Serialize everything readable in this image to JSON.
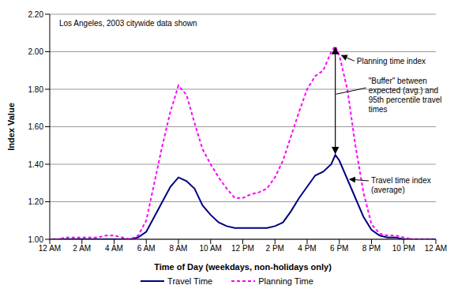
{
  "chart_data": {
    "type": "line",
    "title": "Los Angeles, 2003 citywide data shown",
    "x_label": "Time of Day (weekdays, non-holidays only)",
    "y_label": "Index Value",
    "x": [
      0,
      0.5,
      1,
      1.5,
      2,
      2.5,
      3,
      3.5,
      4,
      4.5,
      5,
      5.5,
      6,
      6.5,
      7,
      7.5,
      8,
      8.5,
      9,
      9.5,
      10,
      10.5,
      11,
      11.5,
      12,
      12.5,
      13,
      13.5,
      14,
      14.5,
      15,
      15.5,
      16,
      16.5,
      17,
      17.5,
      17.75,
      18,
      18.5,
      19,
      19.5,
      20,
      20.5,
      21,
      21.5,
      22,
      22.5,
      23,
      23.5,
      24
    ],
    "series": [
      {
        "name": "Travel Time",
        "color": "#000080",
        "line_style": "solid",
        "values": [
          1.0,
          1.0,
          1.0,
          1.0,
          1.0,
          1.0,
          1.0,
          1.0,
          1.0,
          1.0,
          1.0,
          1.01,
          1.04,
          1.12,
          1.2,
          1.28,
          1.33,
          1.31,
          1.27,
          1.18,
          1.13,
          1.09,
          1.07,
          1.06,
          1.06,
          1.06,
          1.06,
          1.06,
          1.07,
          1.09,
          1.15,
          1.22,
          1.28,
          1.34,
          1.36,
          1.4,
          1.45,
          1.42,
          1.32,
          1.22,
          1.12,
          1.05,
          1.02,
          1.01,
          1.01,
          1.0,
          1.0,
          1.0,
          1.0,
          1.0
        ]
      },
      {
        "name": "Planning Time",
        "color": "#ff00ff",
        "line_style": "dashed",
        "values": [
          1.0,
          1.0,
          1.01,
          1.01,
          1.01,
          1.01,
          1.01,
          1.02,
          1.02,
          1.01,
          1.0,
          1.02,
          1.1,
          1.3,
          1.5,
          1.68,
          1.82,
          1.77,
          1.62,
          1.48,
          1.4,
          1.33,
          1.27,
          1.22,
          1.22,
          1.24,
          1.25,
          1.27,
          1.33,
          1.42,
          1.55,
          1.68,
          1.8,
          1.87,
          1.9,
          2.0,
          2.03,
          1.98,
          1.8,
          1.5,
          1.25,
          1.08,
          1.03,
          1.02,
          1.02,
          1.01,
          1.0,
          1.0,
          1.0,
          1.0
        ]
      }
    ],
    "xlim": [
      0,
      24
    ],
    "xticks": [
      {
        "value": 0,
        "label": "12 AM"
      },
      {
        "value": 2,
        "label": "2 AM"
      },
      {
        "value": 4,
        "label": "4 AM"
      },
      {
        "value": 6,
        "label": "6 AM"
      },
      {
        "value": 8,
        "label": "8 AM"
      },
      {
        "value": 10,
        "label": "10 AM"
      },
      {
        "value": 12,
        "label": "12 PM"
      },
      {
        "value": 14,
        "label": "2 PM"
      },
      {
        "value": 16,
        "label": "4 PM"
      },
      {
        "value": 18,
        "label": "6 PM"
      },
      {
        "value": 20,
        "label": "8 PM"
      },
      {
        "value": 22,
        "label": "10 PM"
      },
      {
        "value": 24,
        "label": "12 AM"
      }
    ],
    "ylim": [
      1.0,
      2.2
    ],
    "yticks": [
      {
        "value": 1.0,
        "label": "1.00"
      },
      {
        "value": 1.2,
        "label": "1.20"
      },
      {
        "value": 1.4,
        "label": "1.40"
      },
      {
        "value": 1.6,
        "label": "1.60"
      },
      {
        "value": 1.8,
        "label": "1.80"
      },
      {
        "value": 2.0,
        "label": "2.00"
      },
      {
        "value": 2.2,
        "label": "2.20"
      }
    ],
    "grid": true,
    "legend": "bottom",
    "annotations": [
      {
        "text": "Planning time index"
      },
      {
        "text": "\"Buffer\" between expected (avg.) and 95th percentile travel times"
      },
      {
        "text": "Travel time index (average)"
      }
    ]
  }
}
